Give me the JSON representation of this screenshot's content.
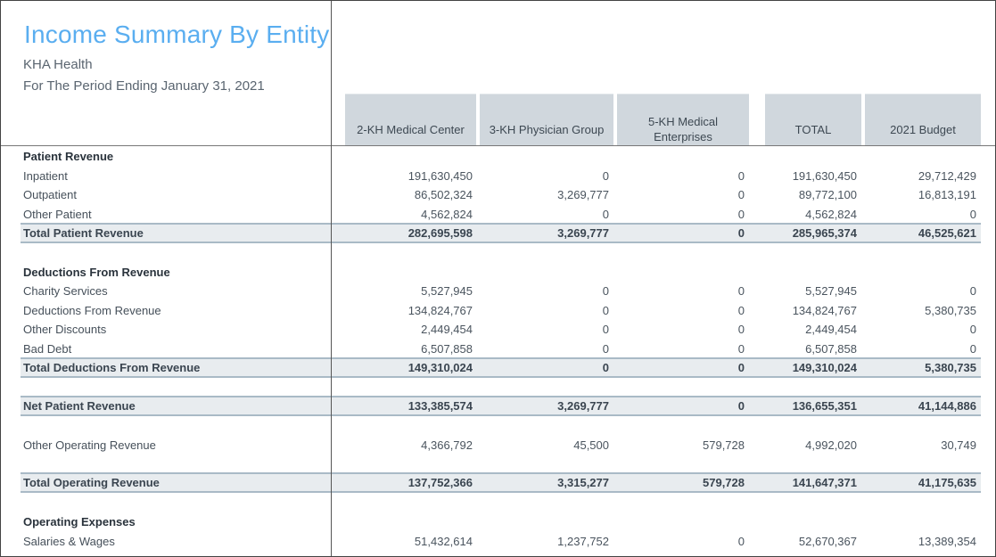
{
  "report": {
    "title": "Income Summary By Entity",
    "company": "KHA Health",
    "period": "For The Period Ending January 31, 2021"
  },
  "columns": [
    "2-KH Medical Center",
    "3-KH Physician Group",
    "5-KH Medical Enterprises",
    "TOTAL",
    "2021 Budget"
  ],
  "column_lines": {
    "c3_line1": "5-KH Medical",
    "c3_line2": "Enterprises"
  },
  "rows": {
    "patient_revenue_header": {
      "label": "Patient Revenue"
    },
    "inpatient": {
      "label": "Inpatient",
      "values": [
        "191,630,450",
        "0",
        "0",
        "191,630,450",
        "29,712,429"
      ]
    },
    "outpatient": {
      "label": "Outpatient",
      "values": [
        "86,502,324",
        "3,269,777",
        "0",
        "89,772,100",
        "16,813,191"
      ]
    },
    "other_patient": {
      "label": "Other Patient",
      "values": [
        "4,562,824",
        "0",
        "0",
        "4,562,824",
        "0"
      ]
    },
    "total_patient_revenue": {
      "label": "Total Patient Revenue",
      "values": [
        "282,695,598",
        "3,269,777",
        "0",
        "285,965,374",
        "46,525,621"
      ]
    },
    "deductions_header": {
      "label": "Deductions From Revenue"
    },
    "charity_services": {
      "label": "Charity Services",
      "values": [
        "5,527,945",
        "0",
        "0",
        "5,527,945",
        "0"
      ]
    },
    "deductions_from_revenue": {
      "label": "Deductions From Revenue",
      "values": [
        "134,824,767",
        "0",
        "0",
        "134,824,767",
        "5,380,735"
      ]
    },
    "other_discounts": {
      "label": "Other Discounts",
      "values": [
        "2,449,454",
        "0",
        "0",
        "2,449,454",
        "0"
      ]
    },
    "bad_debt": {
      "label": "Bad Debt",
      "values": [
        "6,507,858",
        "0",
        "0",
        "6,507,858",
        "0"
      ]
    },
    "total_deductions": {
      "label": "Total Deductions From Revenue",
      "values": [
        "149,310,024",
        "0",
        "0",
        "149,310,024",
        "5,380,735"
      ]
    },
    "net_patient_revenue": {
      "label": "Net Patient Revenue",
      "values": [
        "133,385,574",
        "3,269,777",
        "0",
        "136,655,351",
        "41,144,886"
      ]
    },
    "other_operating_revenue": {
      "label": "Other Operating Revenue",
      "values": [
        "4,366,792",
        "45,500",
        "579,728",
        "4,992,020",
        "30,749"
      ]
    },
    "total_operating_revenue": {
      "label": "Total Operating Revenue",
      "values": [
        "137,752,366",
        "3,315,277",
        "579,728",
        "141,647,371",
        "41,175,635"
      ]
    },
    "operating_expenses_header": {
      "label": "Operating Expenses"
    },
    "salaries_wages": {
      "label": "Salaries & Wages",
      "values": [
        "51,432,614",
        "1,237,752",
        "0",
        "52,670,367",
        "13,389,354"
      ]
    }
  },
  "colors": {
    "title": "#5aaef0",
    "header_bg": "#d0d7dd",
    "total_bg": "#e8ecef",
    "total_border": "#a9bac6"
  }
}
